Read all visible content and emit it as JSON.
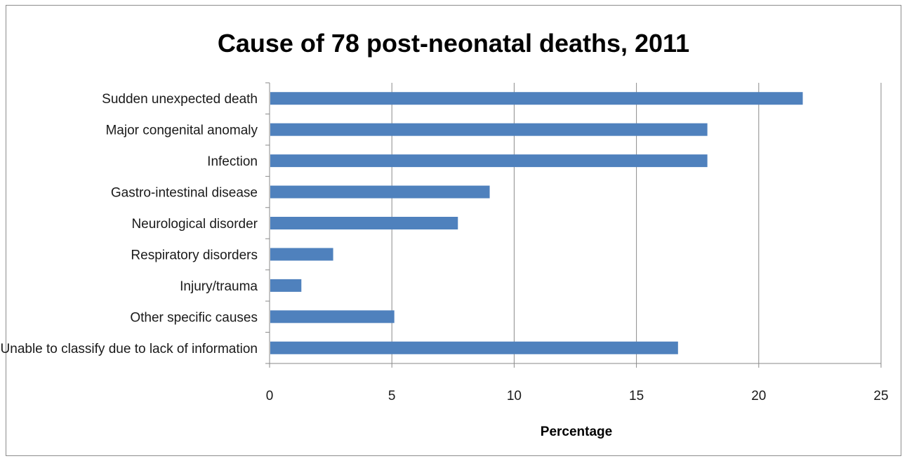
{
  "chart_data": {
    "type": "bar",
    "orientation": "horizontal",
    "title": "Cause of 78 post-neonatal deaths, 2011",
    "xlabel": "Percentage",
    "ylabel": "",
    "xlim": [
      0,
      25
    ],
    "x_ticks": [
      "0",
      "5",
      "10",
      "15",
      "20",
      "25"
    ],
    "grid": "vertical",
    "legend": "none",
    "bar_color": "#4F81BD",
    "categories": [
      "Sudden unexpected death",
      "Major congenital anomaly",
      "Infection",
      "Gastro-intestinal disease",
      "Neurological disorder",
      "Respiratory disorders",
      "Injury/trauma",
      "Other specific causes",
      "Unable to classify due to lack of information"
    ],
    "values": [
      21.8,
      17.9,
      17.9,
      9.0,
      7.7,
      2.6,
      1.3,
      5.1,
      16.7
    ]
  }
}
